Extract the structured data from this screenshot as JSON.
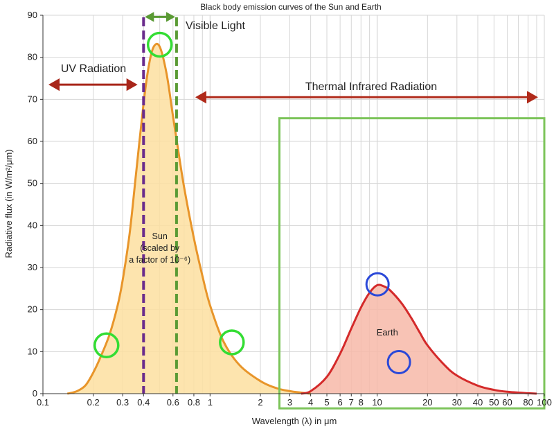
{
  "chart_data": {
    "type": "area",
    "title": "Black body emission curves of the Sun and Earth",
    "xlabel": "Wavelength (λ) in μm",
    "ylabel": "Radiative flux (in W/m²/μm)",
    "x_scale": "log",
    "xlim": [
      0.1,
      100
    ],
    "ylim": [
      0,
      90
    ],
    "y_ticks": [
      0,
      10,
      20,
      30,
      40,
      50,
      60,
      70,
      80,
      90
    ],
    "x_tick_labels": [
      {
        "x": 0.1,
        "label": "0.1"
      },
      {
        "x": 0.2,
        "label": "0.2"
      },
      {
        "x": 0.3,
        "label": "0.3"
      },
      {
        "x": 0.4,
        "label": "0.4"
      },
      {
        "x": 0.6,
        "label": "0.6"
      },
      {
        "x": 0.8,
        "label": "0.8"
      },
      {
        "x": 1,
        "label": "1"
      },
      {
        "x": 2,
        "label": "2"
      },
      {
        "x": 3,
        "label": "3"
      },
      {
        "x": 4,
        "label": "4"
      },
      {
        "x": 5,
        "label": "5"
      },
      {
        "x": 6,
        "label": "6"
      },
      {
        "x": 7,
        "label": "7"
      },
      {
        "x": 8,
        "label": "8"
      },
      {
        "x": 10,
        "label": "10"
      },
      {
        "x": 20,
        "label": "20"
      },
      {
        "x": 30,
        "label": "30"
      },
      {
        "x": 40,
        "label": "40"
      },
      {
        "x": 50,
        "label": "50"
      },
      {
        "x": 60,
        "label": "60"
      },
      {
        "x": 80,
        "label": "80"
      },
      {
        "x": 100,
        "label": "100"
      }
    ],
    "grid": true,
    "series": [
      {
        "name": "Sun",
        "color": "#e8952a",
        "fill": "#fddfa0",
        "x": [
          0.14,
          0.16,
          0.18,
          0.2,
          0.22,
          0.25,
          0.28,
          0.3,
          0.33,
          0.36,
          0.4,
          0.43,
          0.46,
          0.5,
          0.55,
          0.6,
          0.65,
          0.7,
          0.8,
          0.9,
          1.0,
          1.2,
          1.5,
          2,
          2.5,
          3,
          3.5,
          4
        ],
        "values": [
          0,
          0.6,
          2,
          5,
          8.5,
          14,
          21,
          27,
          38,
          52,
          69,
          78,
          82.5,
          82.5,
          76,
          66,
          57,
          49,
          37,
          28,
          21,
          12.5,
          6.8,
          3,
          1.3,
          0.6,
          0.25,
          0
        ]
      },
      {
        "name": "Earth",
        "color": "#d42a2a",
        "fill": "#f7b8a8",
        "x": [
          3.5,
          4,
          5,
          6,
          7,
          8,
          9,
          10,
          11,
          12,
          14,
          16,
          18,
          20,
          25,
          30,
          40,
          50,
          60,
          80,
          90
        ],
        "values": [
          0,
          0.6,
          4,
          9.5,
          15.5,
          20.5,
          24,
          25.8,
          25.5,
          24.5,
          21.5,
          18,
          14.5,
          11.5,
          7,
          4.3,
          1.9,
          0.9,
          0.45,
          0.1,
          0
        ]
      }
    ],
    "annotations": {
      "sun_label": [
        "Sun",
        "(scaled by",
        "a factor of 10⁻⁶)"
      ],
      "earth_label": "Earth",
      "uv_label": "UV Radiation",
      "visible_label": "Visible Light",
      "thermal_label": "Thermal Infrared Radiation",
      "visible_range": [
        0.4,
        0.63
      ],
      "uv_arrow_range": [
        0.1,
        0.39
      ],
      "thermal_arrow_range": [
        0.8,
        90
      ],
      "highlight_box": {
        "x": [
          2.6,
          100
        ],
        "y": [
          -3.5,
          65.5
        ],
        "color": "#7cc45a"
      },
      "green_circles": [
        {
          "x": 0.24,
          "y": 11.5
        },
        {
          "x": 0.5,
          "y": 83
        },
        {
          "x": 1.35,
          "y": 12.2
        }
      ],
      "blue_circles": [
        {
          "x": 10.05,
          "y": 26
        },
        {
          "x": 13.5,
          "y": 7.5
        }
      ]
    },
    "colors": {
      "uv_arrow": "#a8261a",
      "thermal_arrow": "#b02a1a",
      "visible_arrow": "#5a9a34",
      "visible_left_line": "#6a2b8c",
      "visible_right_line": "#5a9a34",
      "green_circle": "#33dd33",
      "blue_circle": "#2a48d8"
    }
  }
}
